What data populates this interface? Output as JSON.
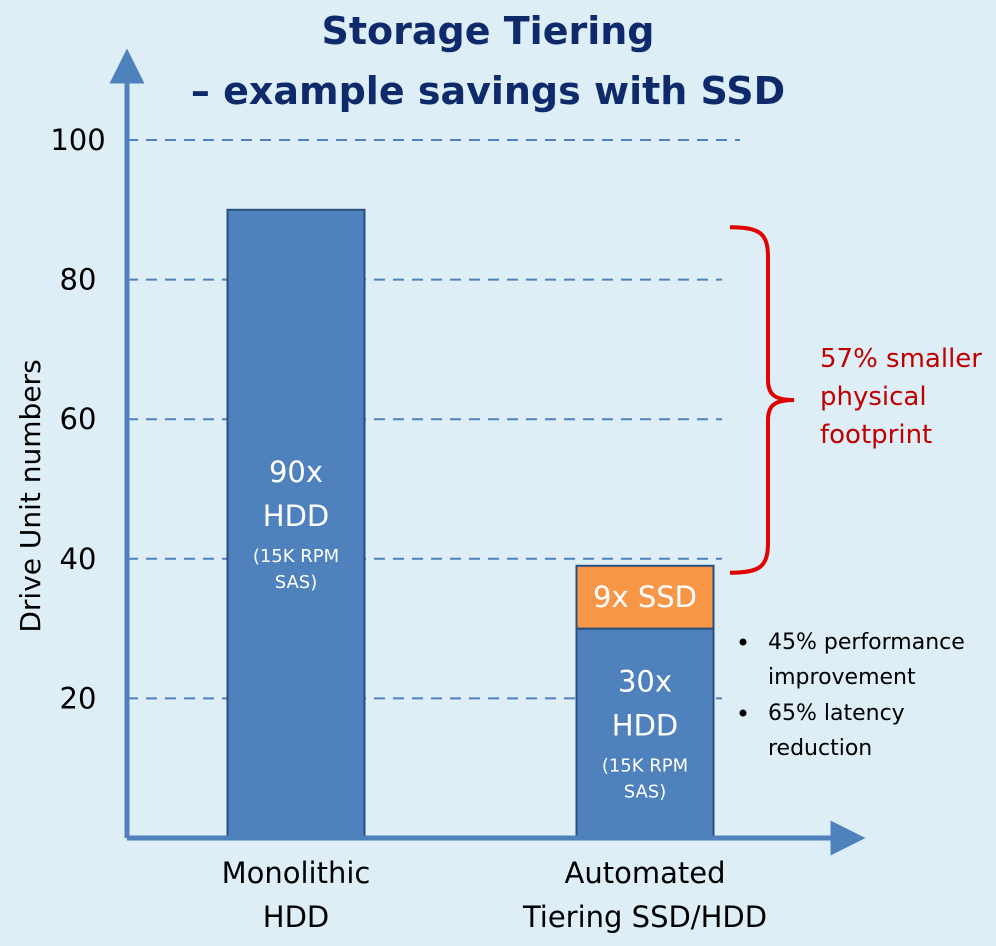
{
  "chart_data": {
    "type": "bar",
    "stacked": true,
    "title": [
      "Storage Tiering",
      "– example savings with SSD"
    ],
    "ylabel": "Drive Unit numbers",
    "ylim": [
      0,
      100
    ],
    "yticks": [
      "20",
      "40",
      "60",
      "80",
      "100"
    ],
    "ytick_values": [
      20,
      40,
      60,
      80,
      100
    ],
    "grid": "dashed horizontal",
    "categories": [
      [
        "Monolithic",
        "HDD"
      ],
      [
        "Automated",
        "Tiering SSD/HDD"
      ]
    ],
    "bars": [
      {
        "segments": [
          {
            "value": 90,
            "color": "#4f81bd",
            "label_main": [
              "90x",
              "HDD"
            ],
            "label_sub": [
              "(15K RPM",
              "SAS)"
            ]
          }
        ]
      },
      {
        "segments": [
          {
            "value": 30,
            "color": "#4f81bd",
            "label_main": [
              "30x",
              "HDD"
            ],
            "label_sub": [
              "(15K RPM",
              "SAS)"
            ]
          },
          {
            "value": 9,
            "color": "#f79646",
            "label_main": [
              "9x SSD"
            ],
            "label_sub": []
          }
        ]
      }
    ],
    "annotations": {
      "brace_text": [
        "57% smaller",
        "physical",
        "footprint"
      ],
      "brace_color": "#e00000",
      "bullets": [
        [
          "45% performance",
          "improvement"
        ],
        [
          "65% latency",
          "reduction"
        ]
      ]
    },
    "colors": {
      "axis": "#4f81bd",
      "grid": "#4f81bd",
      "bar_border": "#2a4f7e"
    }
  }
}
